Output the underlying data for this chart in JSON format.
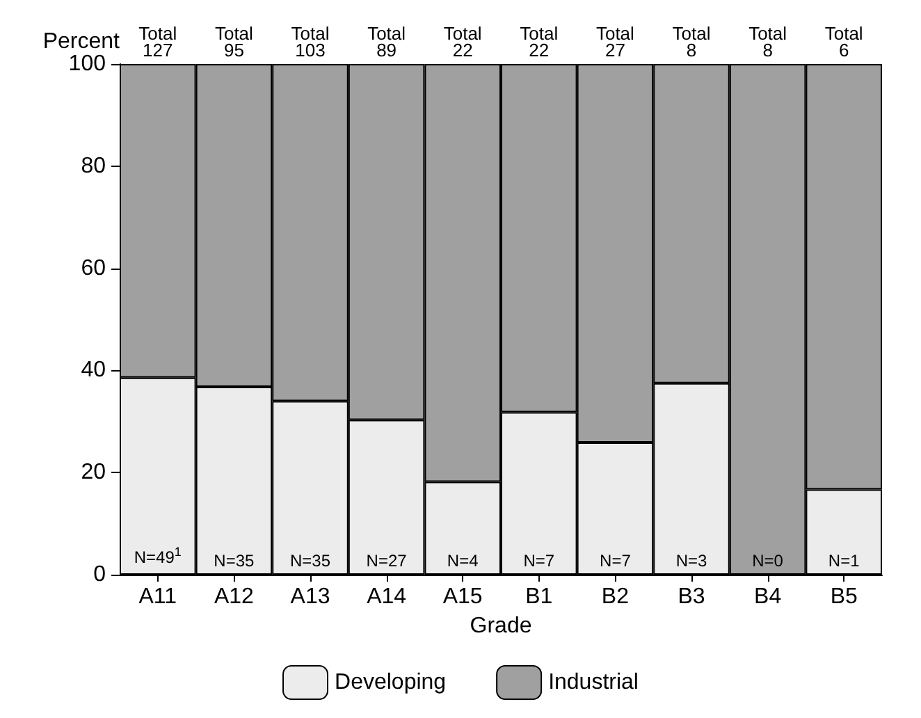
{
  "chart_data": {
    "type": "bar",
    "stacked": true,
    "ylabel": "Percent",
    "xlabel": "Grade",
    "categories": [
      "A11",
      "A12",
      "A13",
      "A14",
      "A15",
      "B1",
      "B2",
      "B3",
      "B4",
      "B5"
    ],
    "series": [
      {
        "name": "Developing",
        "color": "#ececec",
        "values": [
          38.6,
          36.8,
          34.0,
          30.3,
          18.2,
          31.8,
          25.9,
          37.5,
          0,
          16.7
        ]
      },
      {
        "name": "Industrial",
        "color": "#a0a0a0",
        "values": [
          61.4,
          63.2,
          66.0,
          69.7,
          81.8,
          68.2,
          74.1,
          62.5,
          100,
          83.3
        ]
      }
    ],
    "annotations": [
      {
        "text": "N=49$^{1}$",
        "x": "A11",
        "y": 0
      },
      {
        "text": "N=35",
        "x": "A12",
        "y": 0
      },
      {
        "text": "N=35",
        "x": "A13",
        "y": 0
      },
      {
        "text": "N=27",
        "x": "A14",
        "y": 0
      },
      {
        "text": "N=4",
        "x": "A15",
        "y": 0
      },
      {
        "text": "N=7",
        "x": "B1",
        "y": 0
      },
      {
        "text": "N=7",
        "x": "B2",
        "y": 0
      },
      {
        "text": "N=3",
        "x": "B3",
        "y": 0
      },
      {
        "text": "N=0",
        "x": "B4",
        "y": 0
      },
      {
        "text": "N=1",
        "x": "B5",
        "y": 0
      }
    ],
    "totals": [
      "Total 127",
      "Total 95",
      "Total 103",
      "Total 89",
      "Total 22",
      "Total 22",
      "Total 27",
      "Total 8",
      "Total 8",
      "Total 6"
    ],
    "ylim": [
      0,
      100
    ],
    "yticks": [
      0,
      20,
      40,
      60,
      80,
      100
    ],
    "legend": "bottom"
  }
}
